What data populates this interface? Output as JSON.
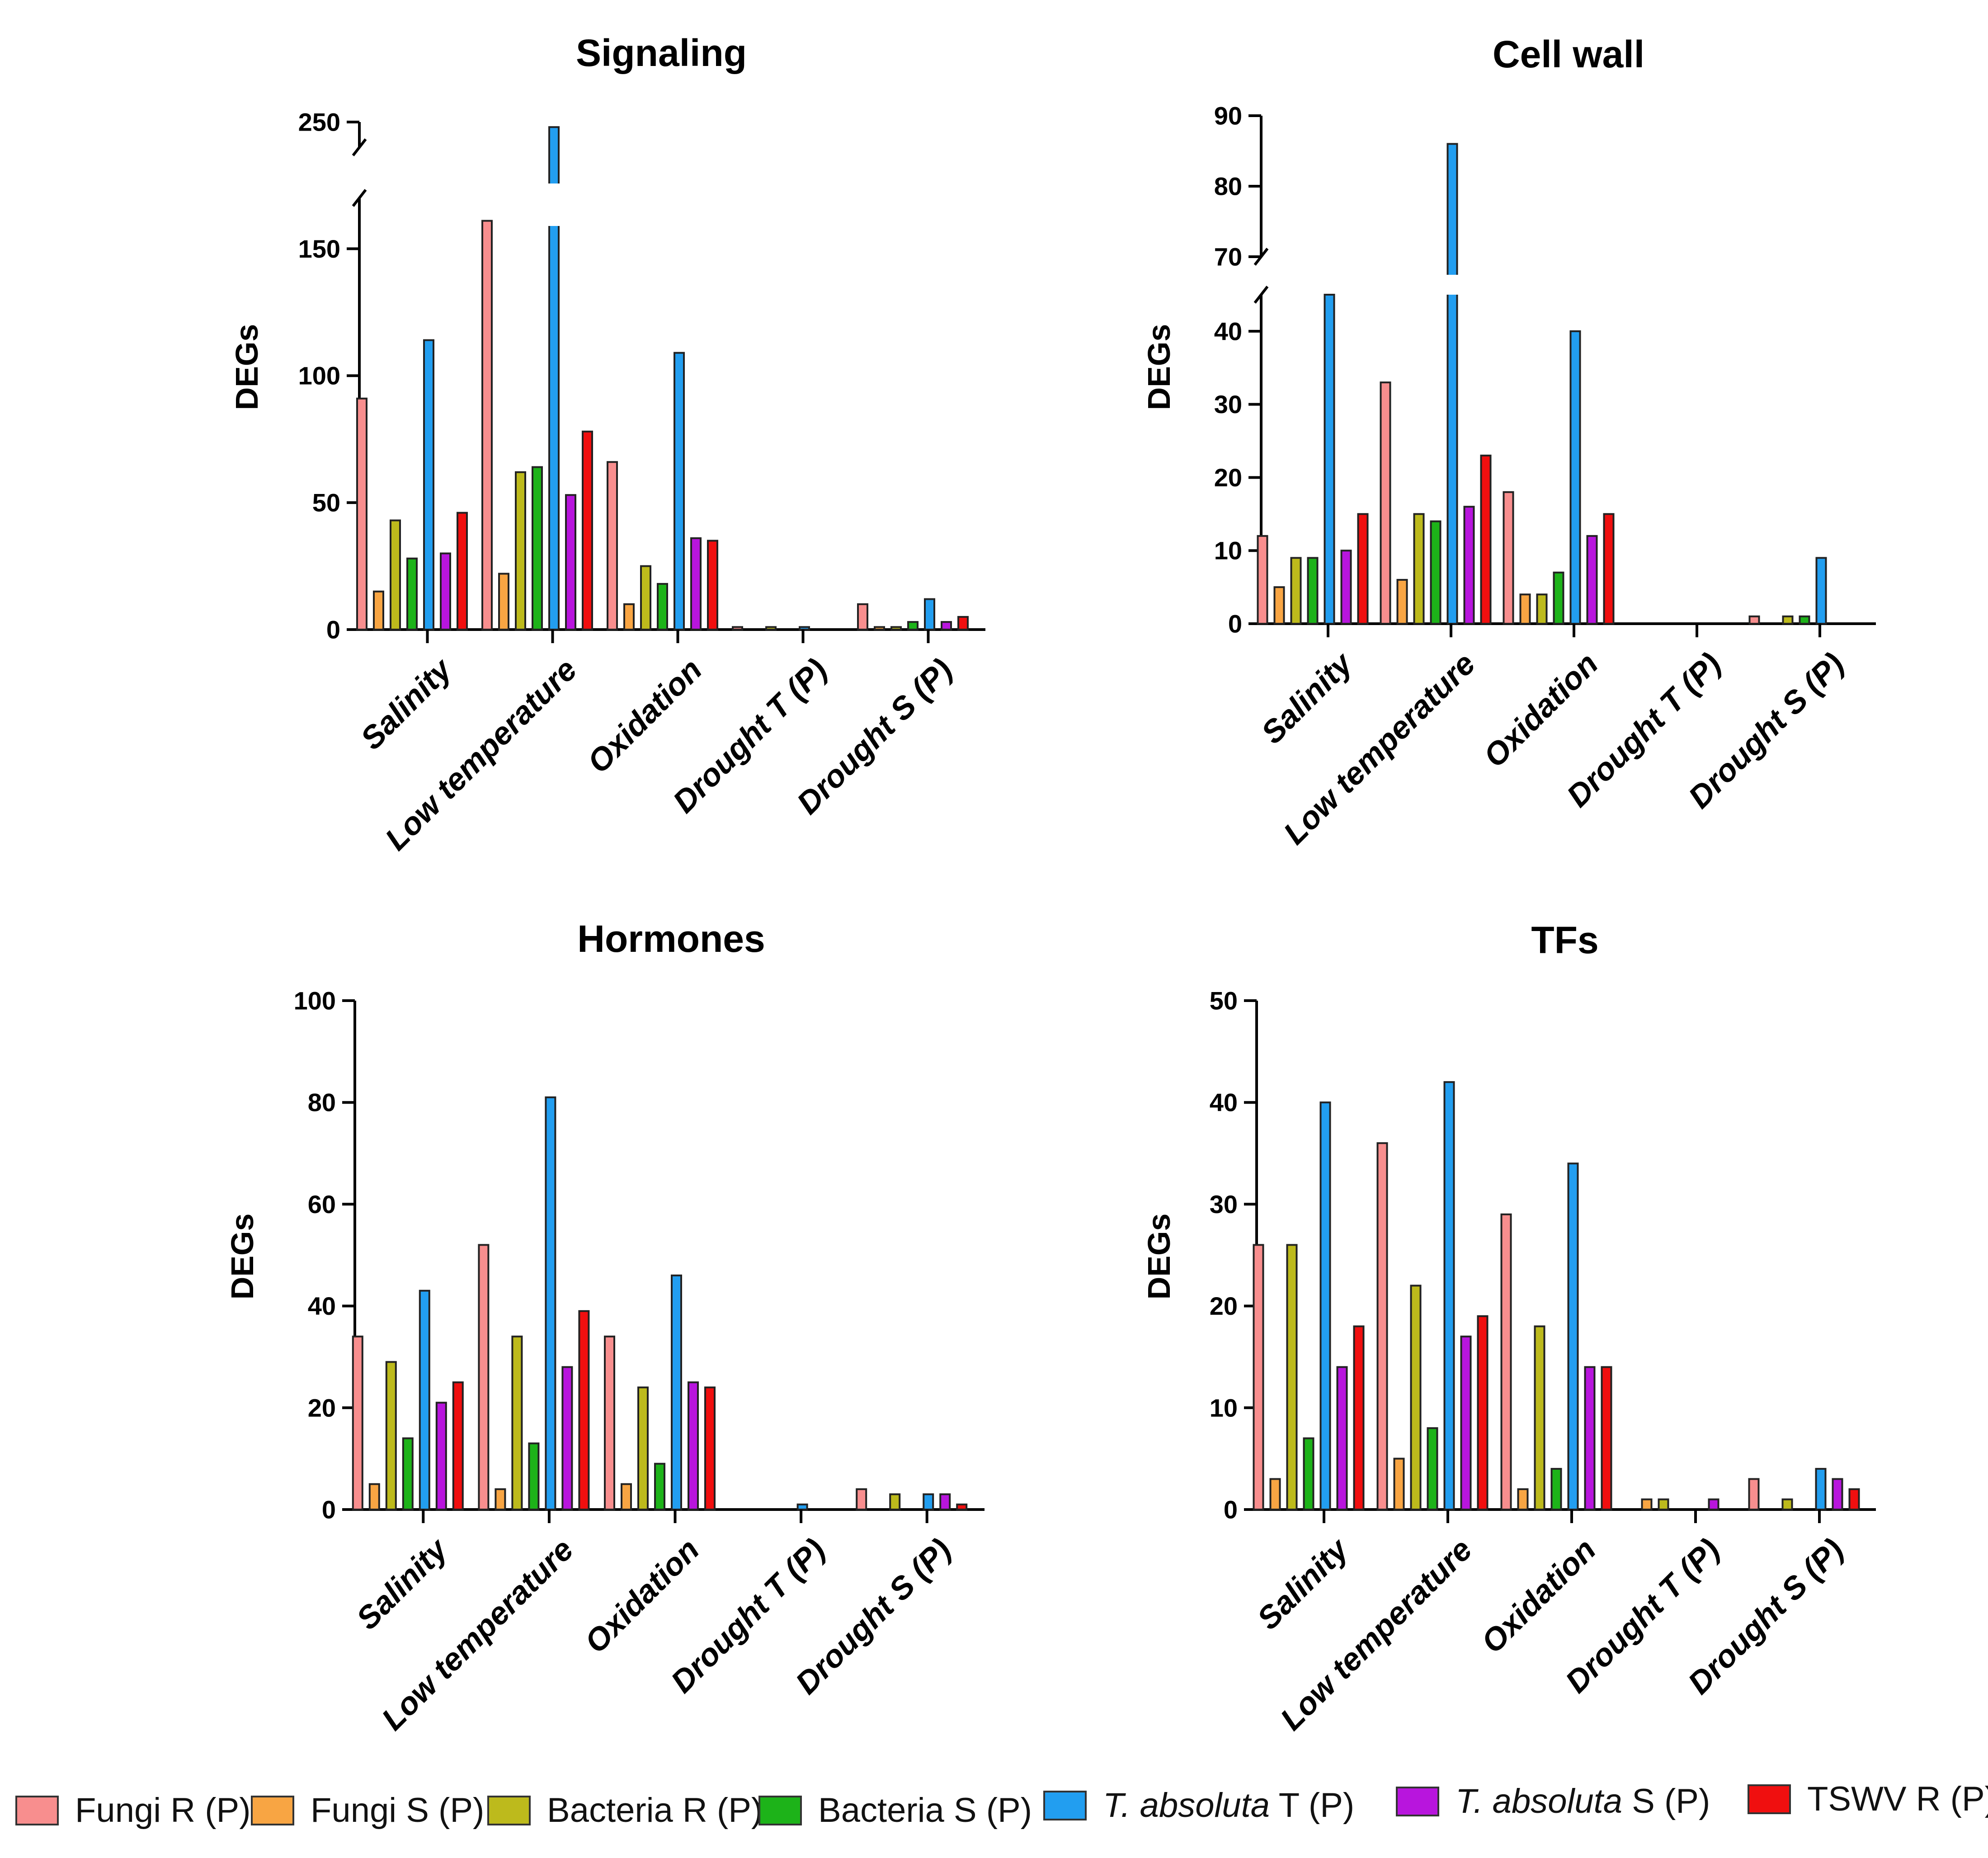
{
  "chart_data": [
    {
      "type": "bar",
      "title": "Signaling",
      "ylabel": "DEGs",
      "xlabel": "",
      "categories": [
        "Salinity",
        "Low temperature",
        "Oxidation",
        "Drought T (P)",
        "Drought S (P)"
      ],
      "ylim": [
        0,
        250
      ],
      "yticks": [
        "0",
        "50",
        "100",
        "150",
        "250"
      ],
      "axis_break": {
        "from": 170,
        "to": 240
      },
      "series": [
        {
          "name": "Fungi R (P)",
          "values": [
            91,
            161,
            66,
            1,
            10
          ]
        },
        {
          "name": "Fungi S (P)",
          "values": [
            15,
            22,
            10,
            0,
            1
          ]
        },
        {
          "name": "Bacteria R (P)",
          "values": [
            43,
            62,
            25,
            1,
            1
          ]
        },
        {
          "name": "Bacteria S (P)",
          "values": [
            28,
            64,
            18,
            0,
            3
          ]
        },
        {
          "name": "T. absoluta T (P)",
          "values": [
            114,
            248,
            109,
            1,
            12
          ]
        },
        {
          "name": "T. absoluta S (P)",
          "values": [
            30,
            53,
            36,
            0,
            3
          ]
        },
        {
          "name": "TSWV R (P)",
          "values": [
            46,
            78,
            35,
            0,
            5
          ]
        }
      ]
    },
    {
      "type": "bar",
      "title": "Cell wall",
      "ylabel": "DEGs",
      "xlabel": "",
      "categories": [
        "Salinity",
        "Low temperature",
        "Oxidation",
        "Drought T (P)",
        "Drought S (P)"
      ],
      "ylim": [
        0,
        90
      ],
      "yticks": [
        "0",
        "10",
        "20",
        "30",
        "40",
        "70",
        "80",
        "90"
      ],
      "axis_break": {
        "from": 45,
        "to": 70
      },
      "series": [
        {
          "name": "Fungi R (P)",
          "values": [
            12,
            33,
            18,
            0,
            1
          ]
        },
        {
          "name": "Fungi S (P)",
          "values": [
            5,
            6,
            4,
            0,
            0
          ]
        },
        {
          "name": "Bacteria R (P)",
          "values": [
            9,
            15,
            4,
            0,
            1
          ]
        },
        {
          "name": "Bacteria S (P)",
          "values": [
            9,
            14,
            7,
            0,
            1
          ]
        },
        {
          "name": "T. absoluta T (P)",
          "values": [
            45,
            86,
            40,
            0,
            9
          ]
        },
        {
          "name": "T. absoluta S (P)",
          "values": [
            10,
            16,
            12,
            0,
            0
          ]
        },
        {
          "name": "TSWV R (P)",
          "values": [
            15,
            23,
            15,
            0,
            0
          ]
        }
      ]
    },
    {
      "type": "bar",
      "title": "Hormones",
      "ylabel": "DEGs",
      "xlabel": "",
      "categories": [
        "Salinity",
        "Low temperature",
        "Oxidation",
        "Drought T (P)",
        "Drought S (P)"
      ],
      "ylim": [
        0,
        100
      ],
      "yticks": [
        "0",
        "20",
        "40",
        "60",
        "80",
        "100"
      ],
      "series": [
        {
          "name": "Fungi R (P)",
          "values": [
            34,
            52,
            34,
            0,
            4
          ]
        },
        {
          "name": "Fungi S (P)",
          "values": [
            5,
            4,
            5,
            0,
            0
          ]
        },
        {
          "name": "Bacteria R (P)",
          "values": [
            29,
            34,
            24,
            0,
            3
          ]
        },
        {
          "name": "Bacteria S (P)",
          "values": [
            14,
            13,
            9,
            0,
            0
          ]
        },
        {
          "name": "T. absoluta T (P)",
          "values": [
            43,
            81,
            46,
            1,
            3
          ]
        },
        {
          "name": "T. absoluta S (P)",
          "values": [
            21,
            28,
            25,
            0,
            3
          ]
        },
        {
          "name": "TSWV R (P)",
          "values": [
            25,
            39,
            24,
            0,
            1
          ]
        }
      ]
    },
    {
      "type": "bar",
      "title": "TFs",
      "ylabel": "DEGs",
      "xlabel": "",
      "categories": [
        "Salinity",
        "Low temperature",
        "Oxidation",
        "Drought T (P)",
        "Drought S (P)"
      ],
      "ylim": [
        0,
        50
      ],
      "yticks": [
        "0",
        "10",
        "20",
        "30",
        "40",
        "50"
      ],
      "series": [
        {
          "name": "Fungi R (P)",
          "values": [
            26,
            36,
            29,
            0,
            3
          ]
        },
        {
          "name": "Fungi S (P)",
          "values": [
            3,
            5,
            2,
            1,
            0
          ]
        },
        {
          "name": "Bacteria R (P)",
          "values": [
            26,
            22,
            18,
            1,
            1
          ]
        },
        {
          "name": "Bacteria S (P)",
          "values": [
            7,
            8,
            4,
            0,
            0
          ]
        },
        {
          "name": "T. absoluta T (P)",
          "values": [
            40,
            42,
            34,
            0,
            4
          ]
        },
        {
          "name": "T. absoluta S (P)",
          "values": [
            14,
            17,
            14,
            1,
            3
          ]
        },
        {
          "name": "TSWV R (P)",
          "values": [
            18,
            19,
            14,
            0,
            2
          ]
        }
      ]
    }
  ],
  "legend": {
    "position": "bottom",
    "items": [
      {
        "pre": "",
        "italic": "",
        "post": "Fungi R (P)",
        "color": "#F88E8E"
      },
      {
        "pre": "",
        "italic": "",
        "post": "Fungi S (P)",
        "color": "#F8A543"
      },
      {
        "pre": "",
        "italic": "",
        "post": "Bacteria R (P)",
        "color": "#BDBA1C"
      },
      {
        "pre": "",
        "italic": "",
        "post": "Bacteria S (P)",
        "color": "#1DB319"
      },
      {
        "pre": "",
        "italic": "T. absoluta",
        "post": " T (P)",
        "color": "#229EF0"
      },
      {
        "pre": "",
        "italic": "T. absoluta",
        "post": " S (P)",
        "color": "#B815DD"
      },
      {
        "pre": "",
        "italic": "",
        "post": "TSWV R (P)",
        "color": "#F00F0F"
      }
    ]
  }
}
